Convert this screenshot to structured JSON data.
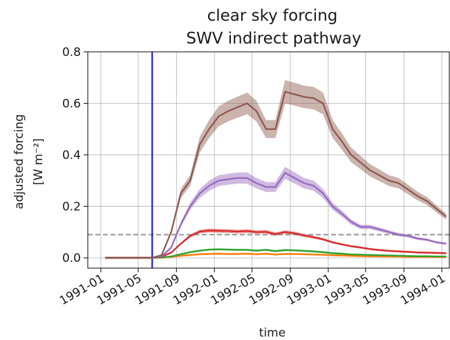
{
  "chart_data": {
    "type": "line",
    "title_line1": "clear sky forcing",
    "title_line2": "SWV indirect pathway",
    "xlabel": "time",
    "ylabel_line1": "adjusted forcing",
    "ylabel_line2": "[W m⁻²]",
    "xlim": [
      "1990-11-20",
      "1994-01-25"
    ],
    "ylim": [
      -0.04,
      0.8
    ],
    "grid": true,
    "x_ticks": [
      "1991-01",
      "1991-05",
      "1991-09",
      "1992-01",
      "1992-05",
      "1992-09",
      "1993-01",
      "1993-05",
      "1993-09",
      "1994-01"
    ],
    "y_ticks": [
      "0.0",
      "0.2",
      "0.4",
      "0.6",
      "0.8"
    ],
    "event_line": {
      "x": "1991-06-15",
      "color": "#1f1fe0"
    },
    "reference_line": {
      "y": 0.09,
      "color": "#8c8c8c",
      "style": "dashed"
    },
    "series": [
      {
        "color": "#ff7f0e",
        "points": [
          [
            "1991-01-15",
            0.0
          ],
          [
            "1991-06-15",
            0.0
          ],
          [
            "1991-07-15",
            0.0
          ],
          [
            "1991-08-15",
            0.004
          ],
          [
            "1991-09-15",
            0.008
          ],
          [
            "1991-10-15",
            0.011
          ],
          [
            "1991-11-15",
            0.014
          ],
          [
            "1991-12-15",
            0.015
          ],
          [
            "1992-01-15",
            0.016
          ],
          [
            "1992-02-15",
            0.015
          ],
          [
            "1992-03-15",
            0.015
          ],
          [
            "1992-04-15",
            0.016
          ],
          [
            "1992-05-15",
            0.014
          ],
          [
            "1992-06-15",
            0.016
          ],
          [
            "1992-07-15",
            0.013
          ],
          [
            "1992-08-15",
            0.015
          ],
          [
            "1992-09-15",
            0.015
          ],
          [
            "1992-10-15",
            0.014
          ],
          [
            "1992-11-15",
            0.013
          ],
          [
            "1992-12-15",
            0.012
          ],
          [
            "1993-01-15",
            0.01
          ],
          [
            "1993-02-15",
            0.009
          ],
          [
            "1993-03-15",
            0.008
          ],
          [
            "1993-04-15",
            0.007
          ],
          [
            "1993-05-15",
            0.006
          ],
          [
            "1993-06-15",
            0.006
          ],
          [
            "1993-07-15",
            0.005
          ],
          [
            "1993-08-15",
            0.005
          ],
          [
            "1993-09-15",
            0.004
          ],
          [
            "1993-10-15",
            0.004
          ],
          [
            "1993-11-15",
            0.004
          ],
          [
            "1993-12-15",
            0.003
          ],
          [
            "1994-01-15",
            0.003
          ]
        ]
      },
      {
        "color": "#2ca02c",
        "points": [
          [
            "1991-01-15",
            0.0
          ],
          [
            "1991-06-15",
            0.0
          ],
          [
            "1991-07-15",
            0.001
          ],
          [
            "1991-08-15",
            0.005
          ],
          [
            "1991-09-15",
            0.014
          ],
          [
            "1991-10-15",
            0.022
          ],
          [
            "1991-11-15",
            0.028
          ],
          [
            "1991-12-15",
            0.032
          ],
          [
            "1992-01-15",
            0.033
          ],
          [
            "1992-02-15",
            0.032
          ],
          [
            "1992-03-15",
            0.031
          ],
          [
            "1992-04-15",
            0.031
          ],
          [
            "1992-05-15",
            0.028
          ],
          [
            "1992-06-15",
            0.031
          ],
          [
            "1992-07-15",
            0.026
          ],
          [
            "1992-08-15",
            0.03
          ],
          [
            "1992-09-15",
            0.029
          ],
          [
            "1992-10-15",
            0.027
          ],
          [
            "1992-11-15",
            0.025
          ],
          [
            "1992-12-15",
            0.022
          ],
          [
            "1993-01-15",
            0.018
          ],
          [
            "1993-02-15",
            0.016
          ],
          [
            "1993-03-15",
            0.013
          ],
          [
            "1993-04-15",
            0.012
          ],
          [
            "1993-05-15",
            0.011
          ],
          [
            "1993-06-15",
            0.01
          ],
          [
            "1993-07-15",
            0.009
          ],
          [
            "1993-08-15",
            0.008
          ],
          [
            "1993-09-15",
            0.007
          ],
          [
            "1993-10-15",
            0.006
          ],
          [
            "1993-11-15",
            0.006
          ],
          [
            "1993-12-15",
            0.005
          ],
          [
            "1994-01-15",
            0.005
          ]
        ]
      },
      {
        "color": "#d62728",
        "points": [
          [
            "1991-01-15",
            0.0
          ],
          [
            "1991-06-15",
            0.0
          ],
          [
            "1991-07-15",
            0.005
          ],
          [
            "1991-08-15",
            0.02
          ],
          [
            "1991-09-15",
            0.055
          ],
          [
            "1991-10-15",
            0.085
          ],
          [
            "1991-11-15",
            0.102
          ],
          [
            "1991-12-15",
            0.106
          ],
          [
            "1992-01-15",
            0.105
          ],
          [
            "1992-02-15",
            0.104
          ],
          [
            "1992-03-15",
            0.102
          ],
          [
            "1992-04-15",
            0.104
          ],
          [
            "1992-05-15",
            0.1
          ],
          [
            "1992-06-15",
            0.101
          ],
          [
            "1992-07-15",
            0.092
          ],
          [
            "1992-08-15",
            0.1
          ],
          [
            "1992-09-15",
            0.095
          ],
          [
            "1992-10-15",
            0.087
          ],
          [
            "1992-11-15",
            0.08
          ],
          [
            "1992-12-15",
            0.072
          ],
          [
            "1993-01-15",
            0.06
          ],
          [
            "1993-02-15",
            0.052
          ],
          [
            "1993-03-15",
            0.045
          ],
          [
            "1993-04-15",
            0.04
          ],
          [
            "1993-05-15",
            0.034
          ],
          [
            "1993-06-15",
            0.03
          ],
          [
            "1993-07-15",
            0.027
          ],
          [
            "1993-08-15",
            0.025
          ],
          [
            "1993-09-15",
            0.023
          ],
          [
            "1993-10-15",
            0.021
          ],
          [
            "1993-11-15",
            0.02
          ],
          [
            "1993-12-15",
            0.019
          ],
          [
            "1994-01-15",
            0.018
          ]
        ]
      },
      {
        "color": "#9467bd",
        "points": [
          [
            "1991-01-15",
            0.0
          ],
          [
            "1991-06-15",
            0.0
          ],
          [
            "1991-07-15",
            0.005
          ],
          [
            "1991-08-15",
            0.04
          ],
          [
            "1991-09-15",
            0.13
          ],
          [
            "1991-10-15",
            0.2
          ],
          [
            "1991-11-15",
            0.25
          ],
          [
            "1991-12-15",
            0.28
          ],
          [
            "1992-01-15",
            0.3
          ],
          [
            "1992-02-15",
            0.305
          ],
          [
            "1992-03-15",
            0.31
          ],
          [
            "1992-04-15",
            0.31
          ],
          [
            "1992-05-15",
            0.29
          ],
          [
            "1992-06-15",
            0.275
          ],
          [
            "1992-07-15",
            0.275
          ],
          [
            "1992-08-15",
            0.33
          ],
          [
            "1992-09-15",
            0.31
          ],
          [
            "1992-10-15",
            0.29
          ],
          [
            "1992-11-15",
            0.28
          ],
          [
            "1992-12-15",
            0.25
          ],
          [
            "1993-01-15",
            0.2
          ],
          [
            "1993-02-15",
            0.17
          ],
          [
            "1993-03-15",
            0.14
          ],
          [
            "1993-04-15",
            0.12
          ],
          [
            "1993-05-15",
            0.12
          ],
          [
            "1993-06-15",
            0.11
          ],
          [
            "1993-07-15",
            0.1
          ],
          [
            "1993-08-15",
            0.09
          ],
          [
            "1993-09-15",
            0.085
          ],
          [
            "1993-10-15",
            0.075
          ],
          [
            "1993-11-15",
            0.07
          ],
          [
            "1993-12-15",
            0.06
          ],
          [
            "1994-01-15",
            0.055
          ]
        ]
      },
      {
        "color": "#8c564b",
        "points": [
          [
            "1991-01-15",
            0.0
          ],
          [
            "1991-06-15",
            0.0
          ],
          [
            "1991-07-15",
            0.01
          ],
          [
            "1991-08-15",
            0.1
          ],
          [
            "1991-09-15",
            0.25
          ],
          [
            "1991-10-15",
            0.3
          ],
          [
            "1991-11-15",
            0.44
          ],
          [
            "1991-12-15",
            0.5
          ],
          [
            "1992-01-15",
            0.55
          ],
          [
            "1992-02-15",
            0.57
          ],
          [
            "1992-03-15",
            0.585
          ],
          [
            "1992-04-15",
            0.6
          ],
          [
            "1992-05-15",
            0.57
          ],
          [
            "1992-06-15",
            0.5
          ],
          [
            "1992-07-15",
            0.5
          ],
          [
            "1992-08-15",
            0.645
          ],
          [
            "1992-09-15",
            0.635
          ],
          [
            "1992-10-15",
            0.625
          ],
          [
            "1992-11-15",
            0.62
          ],
          [
            "1992-12-15",
            0.6
          ],
          [
            "1993-01-15",
            0.5
          ],
          [
            "1993-02-15",
            0.45
          ],
          [
            "1993-03-15",
            0.4
          ],
          [
            "1993-04-15",
            0.37
          ],
          [
            "1993-05-15",
            0.34
          ],
          [
            "1993-06-15",
            0.32
          ],
          [
            "1993-07-15",
            0.3
          ],
          [
            "1993-08-15",
            0.29
          ],
          [
            "1993-09-15",
            0.265
          ],
          [
            "1993-10-15",
            0.24
          ],
          [
            "1993-11-15",
            0.22
          ],
          [
            "1993-12-15",
            0.19
          ],
          [
            "1994-01-15",
            0.16
          ]
        ]
      }
    ]
  }
}
